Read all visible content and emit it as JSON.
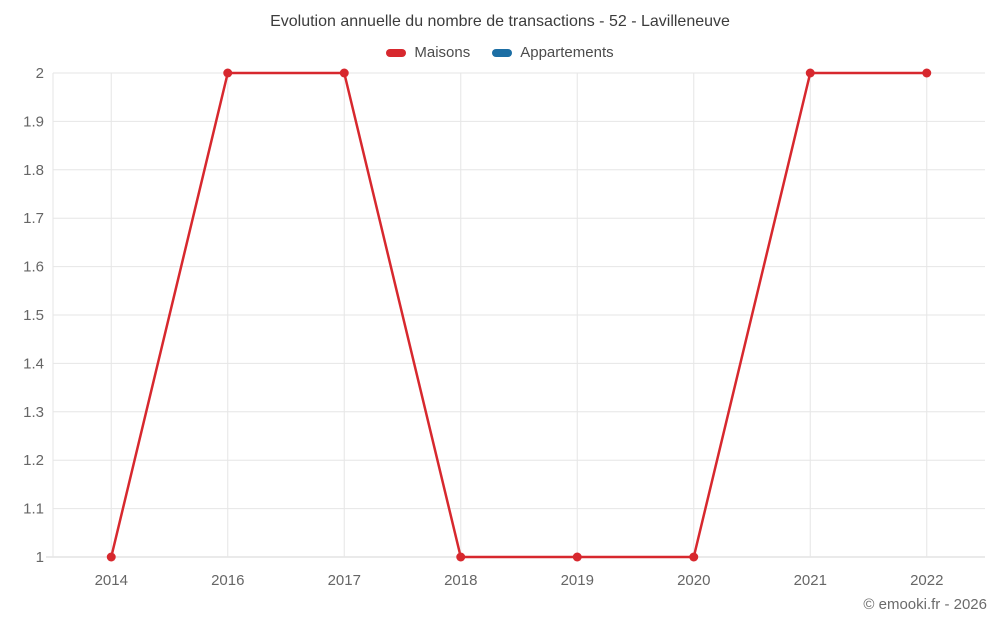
{
  "page": {
    "copyright": "© emooki.fr - 2026"
  },
  "chart_data": {
    "type": "line",
    "title": "Evolution annuelle du nombre de transactions - 52 - Lavilleneuve",
    "categories": [
      "2014",
      "2016",
      "2017",
      "2018",
      "2019",
      "2020",
      "2021",
      "2022"
    ],
    "series": [
      {
        "name": "Maisons",
        "color": "#d7282e",
        "values": [
          1,
          2,
          2,
          1,
          1,
          1,
          2,
          2
        ]
      },
      {
        "name": "Appartements",
        "color": "#1c6ea4",
        "values": []
      }
    ],
    "ylim": [
      1,
      2
    ],
    "ytick_step": 0.1,
    "xlabel": "",
    "ylabel": "",
    "grid": true,
    "legend_position": "top",
    "colors": {
      "gridline": "#e6e6e6",
      "axis_line": "#d6d6d6",
      "tick_text": "#666666",
      "title_text": "#3c3c3c",
      "legend_text": "#4c4c4c",
      "copyright_text": "#6b6b6b"
    }
  }
}
